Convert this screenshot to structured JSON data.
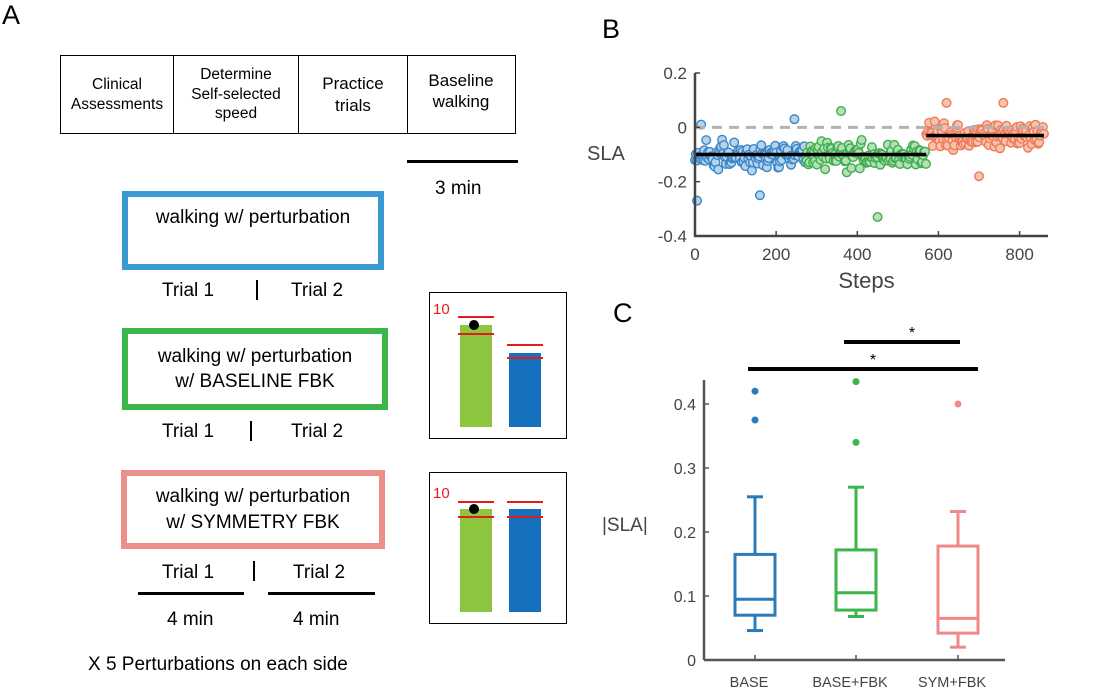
{
  "panel_labels": {
    "a": "A",
    "b": "B",
    "c": "C"
  },
  "protocol": {
    "steps": [
      {
        "label": "Clinical\nAssessments"
      },
      {
        "label": "Determine\nSelf-selected\nspeed"
      },
      {
        "label": "Practice\ntrials"
      },
      {
        "label": "Baseline\nwalking"
      }
    ],
    "baseline_duration": "3 min",
    "conditions": [
      {
        "label": "walking w/ perturbation",
        "color": "#3a9ad4"
      },
      {
        "label": "walking w/ perturbation\nw/ BASELINE FBK",
        "color": "#3cb64a"
      },
      {
        "label": "walking w/ perturbation\nw/ SYMMETRY FBK",
        "color": "#ef8f8b"
      }
    ],
    "trial1": "Trial 1",
    "trial2": "Trial 2",
    "trial_duration": "4 min",
    "footer": "X 5 Perturbations on each side",
    "feedback_target": "10",
    "feedback_colors": {
      "green": "#8cc63f",
      "blue": "#1570be",
      "red": "#e41a1c"
    }
  },
  "chart_data": [
    {
      "type": "scatter",
      "xlabel": "Steps",
      "ylabel": "SLA",
      "xlim": [
        0,
        870
      ],
      "ylim": [
        -0.4,
        0.2
      ],
      "xticks": [
        "0",
        "200",
        "400",
        "600",
        "800"
      ],
      "yticks": [
        "0.2",
        "0",
        "-0.2",
        "-0.4"
      ],
      "series": [
        {
          "x_range": [
            0,
            275
          ],
          "mean": -0.1,
          "color": "#3a86c8",
          "fill": "#b6d3ec"
        },
        {
          "x_range": [
            275,
            570
          ],
          "mean": -0.1,
          "color": "#3fae4f",
          "fill": "#b5e0b6"
        },
        {
          "x_range": [
            570,
            860
          ],
          "mean": -0.03,
          "color": "#ef7b5a",
          "fill": "#f8c3ae"
        }
      ],
      "reference_line": {
        "y": 0,
        "style": "dashed",
        "color": "#b3b3b3"
      },
      "sample_points": [
        {
          "x": 5,
          "y": -0.27
        },
        {
          "x": 15,
          "y": 0.01
        },
        {
          "x": 160,
          "y": -0.25
        },
        {
          "x": 245,
          "y": 0.03
        },
        {
          "x": 360,
          "y": 0.06
        },
        {
          "x": 450,
          "y": -0.33
        },
        {
          "x": 620,
          "y": 0.09
        },
        {
          "x": 700,
          "y": -0.18
        },
        {
          "x": 760,
          "y": 0.09
        }
      ]
    },
    {
      "type": "box",
      "ylabel": "|SLA|",
      "ylim": [
        0,
        0.45
      ],
      "yticks": [
        "0",
        "0.1",
        "0.2",
        "0.3",
        "0.4"
      ],
      "categories": [
        "BASE",
        "BASE+FBK",
        "SYM+FBK"
      ],
      "colors": [
        "#2b7bba",
        "#3cb64a",
        "#f08a8a"
      ],
      "boxes": [
        {
          "whisker_low": 0.046,
          "q1": 0.07,
          "median": 0.095,
          "q3": 0.165,
          "whisker_high": 0.255,
          "outliers": [
            0.375,
            0.42
          ]
        },
        {
          "whisker_low": 0.068,
          "q1": 0.078,
          "median": 0.105,
          "q3": 0.172,
          "whisker_high": 0.27,
          "outliers": [
            0.34,
            0.435
          ]
        },
        {
          "whisker_low": 0.02,
          "q1": 0.042,
          "median": 0.065,
          "q3": 0.178,
          "whisker_high": 0.232,
          "outliers": [
            0.4
          ]
        }
      ],
      "significance": [
        {
          "from": "BASE+FBK",
          "to": "SYM+FBK",
          "label": "*"
        },
        {
          "from": "BASE",
          "to": "SYM+FBK",
          "label": "*"
        }
      ]
    }
  ]
}
